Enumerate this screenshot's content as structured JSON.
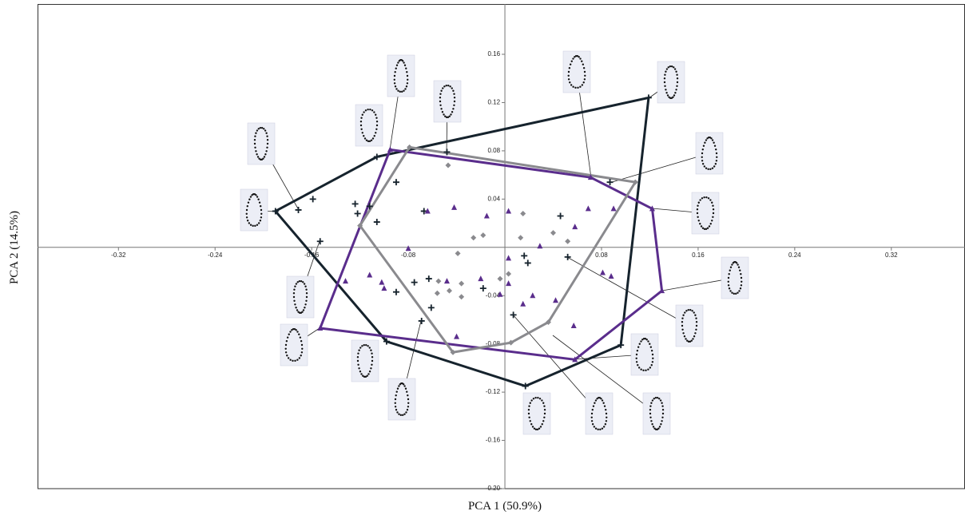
{
  "chart_data": {
    "type": "scatter",
    "hull": true,
    "x_label": "PCA 1 (50.9%)",
    "y_label": "PCA 2 (14.5%)",
    "xlim": [
      -0.387,
      0.381
    ],
    "ylim": [
      -0.2,
      0.2017
    ],
    "xticks": [
      -0.32,
      -0.24,
      -0.16,
      -0.08,
      0.08,
      0.16,
      0.24,
      0.32
    ],
    "yticks": [
      0.16,
      0.12,
      0.08,
      0.04,
      -0.04,
      -0.08,
      -0.12,
      -0.16,
      {
        "value": -0.2,
        "label": "-0.20"
      }
    ],
    "series": [
      {
        "color": "#16232d",
        "marker": "plus",
        "x": [
          -0.19,
          -0.106,
          0.119,
          0.096,
          0.017,
          -0.098,
          -0.171,
          -0.159,
          -0.153,
          -0.124,
          -0.122,
          -0.112,
          -0.106,
          -0.09,
          -0.048,
          -0.067,
          -0.075,
          -0.063,
          -0.061,
          -0.09,
          -0.018,
          0.016,
          0.019,
          0.046,
          0.052,
          0.087,
          0.007,
          -0.069
        ],
        "values": [
          0.03,
          0.075,
          0.124,
          -0.081,
          -0.115,
          -0.078,
          0.031,
          0.04,
          0.005,
          0.036,
          0.028,
          0.034,
          0.021,
          0.054,
          0.079,
          0.03,
          -0.029,
          -0.026,
          -0.05,
          -0.037,
          -0.034,
          -0.007,
          -0.013,
          0.026,
          -0.008,
          0.054,
          -0.056,
          -0.061
        ]
      },
      {
        "color": "#5a2d8c",
        "marker": "triangle",
        "x": [
          -0.095,
          0.071,
          0.122,
          0.13,
          0.058,
          -0.153,
          -0.132,
          -0.112,
          -0.102,
          -0.1,
          -0.08,
          -0.064,
          -0.042,
          -0.048,
          -0.02,
          0.003,
          0.003,
          -0.004,
          0.015,
          0.023,
          0.042,
          0.057,
          -0.015,
          0.003,
          0.029,
          0.058,
          0.069,
          0.09,
          0.081,
          0.088,
          -0.04
        ],
        "values": [
          0.081,
          0.058,
          0.032,
          -0.036,
          -0.093,
          -0.067,
          -0.028,
          -0.023,
          -0.029,
          -0.034,
          -0.001,
          0.03,
          0.033,
          -0.028,
          -0.026,
          -0.009,
          -0.03,
          -0.039,
          -0.047,
          -0.04,
          -0.044,
          -0.065,
          0.026,
          0.03,
          0.001,
          0.017,
          0.032,
          0.032,
          -0.021,
          -0.024,
          -0.074
        ]
      },
      {
        "color": "#8a8a8e",
        "marker": "diamond",
        "x": [
          -0.079,
          0.108,
          0.036,
          0.005,
          -0.043,
          -0.12,
          -0.047,
          -0.026,
          -0.018,
          0.015,
          0.013,
          0.052,
          -0.039,
          -0.055,
          -0.056,
          -0.046,
          -0.036,
          -0.036,
          -0.004,
          0.003,
          0.04
        ],
        "values": [
          0.083,
          0.054,
          -0.062,
          -0.079,
          -0.087,
          0.018,
          0.068,
          0.008,
          0.01,
          0.028,
          0.008,
          0.005,
          -0.005,
          -0.028,
          -0.038,
          -0.036,
          -0.03,
          -0.041,
          -0.026,
          -0.022,
          0.012
        ]
      }
    ]
  }
}
